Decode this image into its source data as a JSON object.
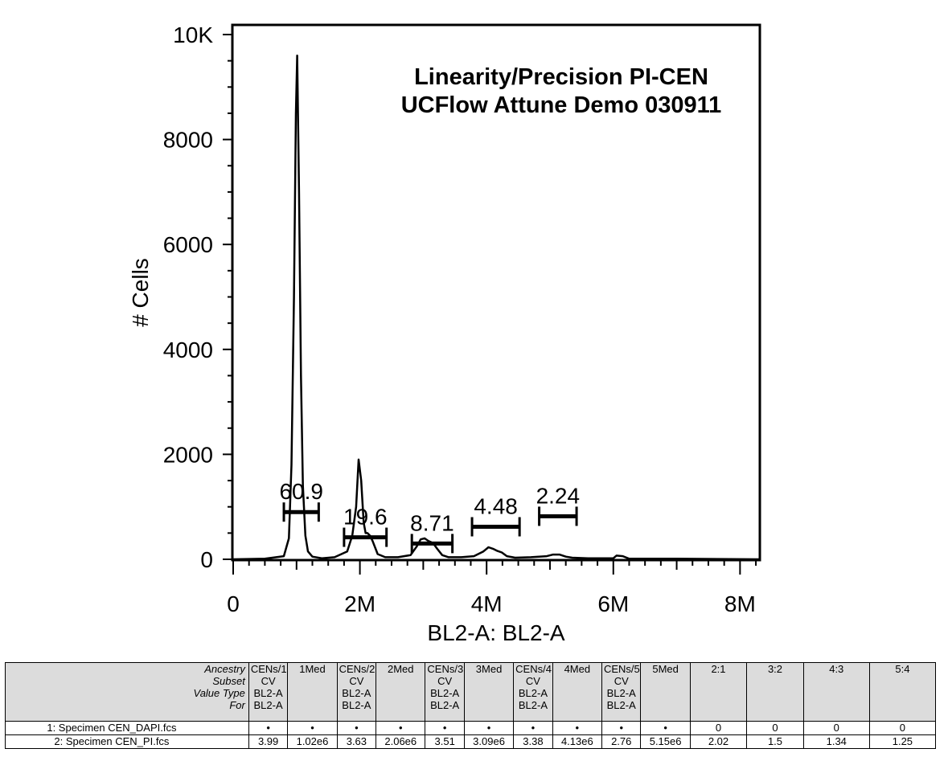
{
  "chart_data": {
    "type": "histogram",
    "title_lines": [
      "Linearity/Precision PI-CEN",
      "UCFlow Attune Demo 030911"
    ],
    "xlabel": "BL2-A: BL2-A",
    "ylabel": "# Cells",
    "xlim": [
      0,
      8300000
    ],
    "ylim": [
      0,
      10000
    ],
    "x_ticks": [
      {
        "value": 0,
        "label": "0"
      },
      {
        "value": 2000000,
        "label": "2M"
      },
      {
        "value": 4000000,
        "label": "4M"
      },
      {
        "value": 6000000,
        "label": "6M"
      },
      {
        "value": 8000000,
        "label": "8M"
      }
    ],
    "y_ticks": [
      {
        "value": 0,
        "label": "0"
      },
      {
        "value": 2000,
        "label": "2000"
      },
      {
        "value": 4000,
        "label": "4000"
      },
      {
        "value": 6000,
        "label": "6000"
      },
      {
        "value": 8000,
        "label": "8000"
      },
      {
        "value": 10000,
        "label": "10K"
      }
    ],
    "series": [
      {
        "x": [
          0,
          500000,
          800000,
          880000,
          920000,
          960000,
          990000,
          1010000,
          1040000,
          1070000,
          1100000,
          1140000,
          1180000,
          1250000,
          1400000,
          1600000,
          1800000,
          1880000,
          1940000,
          1980000,
          2020000,
          2060000,
          2090000,
          2120000,
          2160000,
          2200000,
          2280000,
          2400000,
          2600000,
          2800000,
          2900000,
          2960000,
          3020000,
          3080000,
          3120000,
          3160000,
          3220000,
          3300000,
          3400000,
          3600000,
          3800000,
          3950000,
          4030000,
          4100000,
          4170000,
          4240000,
          4320000,
          4450000,
          4700000,
          4950000,
          5050000,
          5150000,
          5250000,
          5350000,
          5600000,
          6000000,
          6050000,
          6150000,
          6250000,
          6400000,
          7000000,
          8300000
        ],
        "y": [
          0,
          10,
          60,
          400,
          1800,
          5000,
          8500,
          9600,
          7000,
          3500,
          1400,
          450,
          150,
          50,
          20,
          40,
          150,
          450,
          1000,
          1900,
          1500,
          700,
          500,
          500,
          450,
          350,
          100,
          40,
          40,
          80,
          250,
          380,
          400,
          350,
          330,
          300,
          200,
          80,
          40,
          40,
          60,
          150,
          230,
          200,
          160,
          130,
          60,
          30,
          40,
          60,
          90,
          90,
          50,
          30,
          20,
          20,
          70,
          60,
          10,
          10,
          10,
          0
        ]
      }
    ],
    "gates": [
      {
        "label": "60.9",
        "start": 800000,
        "end": 1350000,
        "level": 900
      },
      {
        "label": "19.6",
        "start": 1750000,
        "end": 2420000,
        "level": 420
      },
      {
        "label": "8.71",
        "start": 2820000,
        "end": 3460000,
        "level": 300
      },
      {
        "label": "4.48",
        "start": 3770000,
        "end": 4520000,
        "level": 620
      },
      {
        "label": "2.24",
        "start": 4830000,
        "end": 5420000,
        "level": 820
      }
    ]
  },
  "table": {
    "header_labels": [
      "Ancestry",
      "Subset",
      "Value Type",
      "For"
    ],
    "columns": [
      {
        "lines": [
          "CENs/1",
          "CV",
          "BL2-A",
          "BL2-A"
        ]
      },
      {
        "lines": [
          "1Med"
        ]
      },
      {
        "lines": [
          "CENs/2",
          "CV",
          "BL2-A",
          "BL2-A"
        ]
      },
      {
        "lines": [
          "2Med"
        ]
      },
      {
        "lines": [
          "CENs/3",
          "CV",
          "BL2-A",
          "BL2-A"
        ]
      },
      {
        "lines": [
          "3Med"
        ]
      },
      {
        "lines": [
          "CENs/4",
          "CV",
          "BL2-A",
          "BL2-A"
        ]
      },
      {
        "lines": [
          "4Med"
        ]
      },
      {
        "lines": [
          "CENs/5",
          "CV",
          "BL2-A",
          "BL2-A"
        ]
      },
      {
        "lines": [
          "5Med"
        ]
      },
      {
        "lines": [
          "2:1"
        ]
      },
      {
        "lines": [
          "3:2"
        ]
      },
      {
        "lines": [
          "4:3"
        ]
      },
      {
        "lines": [
          "5:4"
        ]
      }
    ],
    "rows": [
      {
        "name": "1: Specimen CEN_DAPI.fcs",
        "cells": [
          "•",
          "•",
          "•",
          "•",
          "•",
          "•",
          "•",
          "•",
          "•",
          "•",
          "0",
          "0",
          "0",
          "0"
        ]
      },
      {
        "name": "2: Specimen CEN_PI.fcs",
        "cells": [
          "3.99",
          "1.02e6",
          "3.63",
          "2.06e6",
          "3.51",
          "3.09e6",
          "3.38",
          "4.13e6",
          "2.76",
          "5.15e6",
          "2.02",
          "1.5",
          "1.34",
          "1.25"
        ]
      }
    ]
  }
}
